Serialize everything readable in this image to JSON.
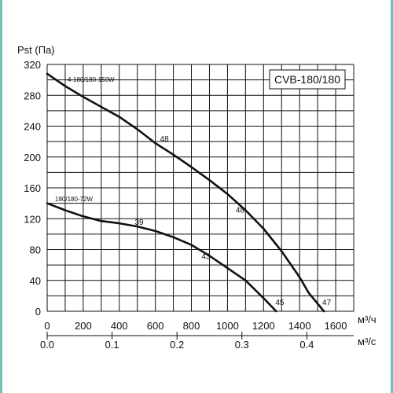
{
  "chart_data": {
    "type": "line",
    "title": "CVB-180/180",
    "ylabel": "Pst (Па)",
    "xlabel": "м³/ч",
    "x2label": "м³/с",
    "xlim": [
      0,
      1700
    ],
    "ylim": [
      0,
      320
    ],
    "x_ticks": [
      0,
      200,
      400,
      600,
      800,
      1000,
      1200,
      1400,
      1600
    ],
    "x2_ticks": [
      "0.0",
      "0.1",
      "0.2",
      "0.3",
      "0.4"
    ],
    "x2_ticks_m3s": [
      0.0,
      0.1,
      0.2,
      0.3,
      0.4
    ],
    "y_ticks": [
      0,
      40,
      80,
      120,
      160,
      200,
      240,
      280,
      320
    ],
    "grid": true,
    "series": [
      {
        "name": "4-180/180-150W",
        "x": [
          0,
          100,
          200,
          300,
          400,
          500,
          600,
          700,
          800,
          900,
          1000,
          1100,
          1200,
          1300,
          1400,
          1450,
          1535
        ],
        "y": [
          308,
          292,
          278,
          265,
          252,
          236,
          218,
          203,
          187,
          170,
          152,
          131,
          107,
          78,
          44,
          24,
          0
        ]
      },
      {
        "name": "180/180-72W",
        "x": [
          0,
          100,
          200,
          300,
          400,
          500,
          600,
          700,
          800,
          900,
          1000,
          1100,
          1200,
          1270
        ],
        "y": [
          140,
          131,
          123,
          117,
          114,
          110,
          104,
          96,
          86,
          72,
          56,
          40,
          17,
          0
        ]
      }
    ],
    "annotations": [
      {
        "text": "48",
        "x": 650,
        "y": 220
      },
      {
        "text": "48",
        "x": 1070,
        "y": 128
      },
      {
        "text": "47",
        "x": 1550,
        "y": 8
      },
      {
        "text": "39",
        "x": 510,
        "y": 112
      },
      {
        "text": "43",
        "x": 880,
        "y": 68
      },
      {
        "text": "45",
        "x": 1290,
        "y": 8
      }
    ]
  }
}
